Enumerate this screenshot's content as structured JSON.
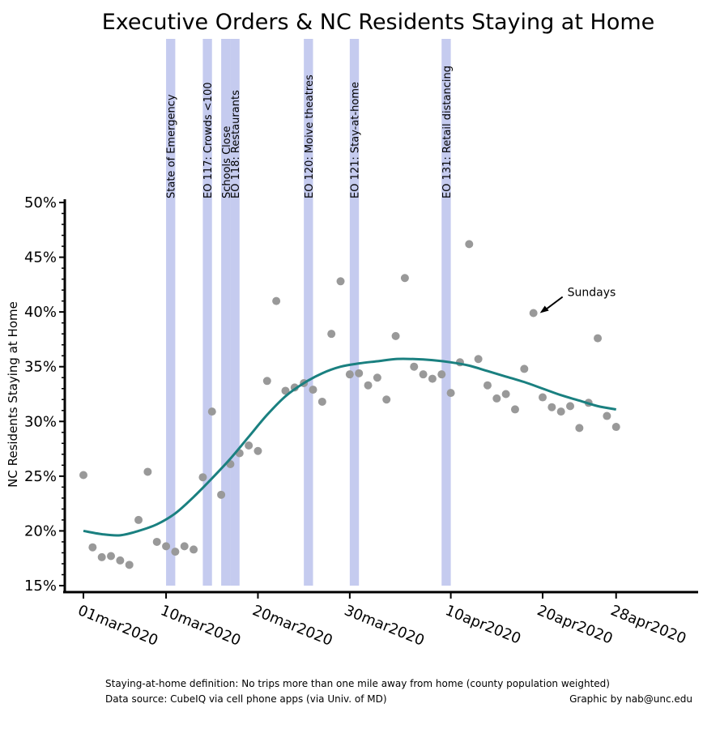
{
  "chart_data": {
    "type": "scatter",
    "title": "Executive Orders  & NC Residents Staying at Home",
    "ylabel": "NC Residents Staying at Home",
    "xlabel": "",
    "ylim": [
      15,
      50
    ],
    "y_unit": "%",
    "xlim": [
      "2020-02-29",
      "2020-05-05"
    ],
    "y_ticks": [
      15,
      20,
      25,
      30,
      35,
      40,
      45,
      50
    ],
    "y_tick_labels": [
      "15%",
      "20%",
      "25%",
      "30%",
      "35%",
      "40%",
      "45%",
      "50%"
    ],
    "x_ticks": [
      "2020-03-01",
      "2020-03-10",
      "2020-03-20",
      "2020-03-30",
      "2020-04-10",
      "2020-04-20",
      "2020-04-28"
    ],
    "x_tick_labels": [
      "01mar2020",
      "10mar2020",
      "20mar2020",
      "30mar2020",
      "10apr2020",
      "20apr2020",
      "28apr2020"
    ],
    "grid": false,
    "series": [
      {
        "type": "scatter",
        "color": "#999999",
        "points": [
          {
            "x": "2020-03-01",
            "y": 25.1
          },
          {
            "x": "2020-03-02",
            "y": 18.5
          },
          {
            "x": "2020-03-03",
            "y": 17.6
          },
          {
            "x": "2020-03-04",
            "y": 17.7
          },
          {
            "x": "2020-03-05",
            "y": 17.3
          },
          {
            "x": "2020-03-06",
            "y": 16.9
          },
          {
            "x": "2020-03-07",
            "y": 21.0
          },
          {
            "x": "2020-03-08",
            "y": 25.4
          },
          {
            "x": "2020-03-09",
            "y": 19.0
          },
          {
            "x": "2020-03-10",
            "y": 18.6
          },
          {
            "x": "2020-03-11",
            "y": 18.1
          },
          {
            "x": "2020-03-12",
            "y": 18.6
          },
          {
            "x": "2020-03-13",
            "y": 18.3
          },
          {
            "x": "2020-03-14",
            "y": 24.9
          },
          {
            "x": "2020-03-15",
            "y": 30.9
          },
          {
            "x": "2020-03-16",
            "y": 23.3
          },
          {
            "x": "2020-03-17",
            "y": 26.1
          },
          {
            "x": "2020-03-18",
            "y": 27.1
          },
          {
            "x": "2020-03-19",
            "y": 27.8
          },
          {
            "x": "2020-03-20",
            "y": 27.3
          },
          {
            "x": "2020-03-21",
            "y": 33.7
          },
          {
            "x": "2020-03-22",
            "y": 41.0
          },
          {
            "x": "2020-03-23",
            "y": 32.8
          },
          {
            "x": "2020-03-24",
            "y": 33.1
          },
          {
            "x": "2020-03-25",
            "y": 33.5
          },
          {
            "x": "2020-03-26",
            "y": 32.9
          },
          {
            "x": "2020-03-27",
            "y": 31.8
          },
          {
            "x": "2020-03-28",
            "y": 38.0
          },
          {
            "x": "2020-03-29",
            "y": 42.8
          },
          {
            "x": "2020-03-30",
            "y": 34.3
          },
          {
            "x": "2020-03-31",
            "y": 34.4
          },
          {
            "x": "2020-04-01",
            "y": 33.3
          },
          {
            "x": "2020-04-02",
            "y": 34.0
          },
          {
            "x": "2020-04-03",
            "y": 32.0
          },
          {
            "x": "2020-04-04",
            "y": 37.8
          },
          {
            "x": "2020-04-05",
            "y": 43.1
          },
          {
            "x": "2020-04-06",
            "y": 35.0
          },
          {
            "x": "2020-04-07",
            "y": 34.3
          },
          {
            "x": "2020-04-08",
            "y": 33.9
          },
          {
            "x": "2020-04-09",
            "y": 34.3
          },
          {
            "x": "2020-04-10",
            "y": 32.6
          },
          {
            "x": "2020-04-11",
            "y": 35.4
          },
          {
            "x": "2020-04-12",
            "y": 46.2
          },
          {
            "x": "2020-04-13",
            "y": 35.7
          },
          {
            "x": "2020-04-14",
            "y": 33.3
          },
          {
            "x": "2020-04-15",
            "y": 32.1
          },
          {
            "x": "2020-04-16",
            "y": 32.5
          },
          {
            "x": "2020-04-17",
            "y": 31.1
          },
          {
            "x": "2020-04-18",
            "y": 34.8
          },
          {
            "x": "2020-04-19",
            "y": 39.9
          },
          {
            "x": "2020-04-20",
            "y": 32.2
          },
          {
            "x": "2020-04-21",
            "y": 31.3
          },
          {
            "x": "2020-04-22",
            "y": 30.9
          },
          {
            "x": "2020-04-23",
            "y": 31.4
          },
          {
            "x": "2020-04-24",
            "y": 29.4
          },
          {
            "x": "2020-04-25",
            "y": 31.7
          },
          {
            "x": "2020-04-26",
            "y": 37.6
          },
          {
            "x": "2020-04-27",
            "y": 30.5
          },
          {
            "x": "2020-04-28",
            "y": 29.5
          }
        ]
      },
      {
        "type": "line",
        "smooth": true,
        "color": "#1a8080",
        "points": [
          {
            "x": "2020-03-01",
            "y": 20.0
          },
          {
            "x": "2020-03-03",
            "y": 19.7
          },
          {
            "x": "2020-03-05",
            "y": 19.6
          },
          {
            "x": "2020-03-07",
            "y": 20.0
          },
          {
            "x": "2020-03-09",
            "y": 20.6
          },
          {
            "x": "2020-03-11",
            "y": 21.6
          },
          {
            "x": "2020-03-13",
            "y": 23.1
          },
          {
            "x": "2020-03-15",
            "y": 24.8
          },
          {
            "x": "2020-03-17",
            "y": 26.6
          },
          {
            "x": "2020-03-19",
            "y": 28.6
          },
          {
            "x": "2020-03-21",
            "y": 30.6
          },
          {
            "x": "2020-03-23",
            "y": 32.3
          },
          {
            "x": "2020-03-25",
            "y": 33.5
          },
          {
            "x": "2020-03-27",
            "y": 34.4
          },
          {
            "x": "2020-03-29",
            "y": 35.0
          },
          {
            "x": "2020-03-31",
            "y": 35.3
          },
          {
            "x": "2020-04-02",
            "y": 35.5
          },
          {
            "x": "2020-04-04",
            "y": 35.7
          },
          {
            "x": "2020-04-06",
            "y": 35.7
          },
          {
            "x": "2020-04-08",
            "y": 35.6
          },
          {
            "x": "2020-04-10",
            "y": 35.4
          },
          {
            "x": "2020-04-12",
            "y": 35.1
          },
          {
            "x": "2020-04-14",
            "y": 34.6
          },
          {
            "x": "2020-04-16",
            "y": 34.1
          },
          {
            "x": "2020-04-18",
            "y": 33.6
          },
          {
            "x": "2020-04-20",
            "y": 33.0
          },
          {
            "x": "2020-04-22",
            "y": 32.4
          },
          {
            "x": "2020-04-24",
            "y": 31.9
          },
          {
            "x": "2020-04-26",
            "y": 31.4
          },
          {
            "x": "2020-04-28",
            "y": 31.1
          }
        ]
      }
    ],
    "event_bands": [
      {
        "start": "2020-03-10",
        "end": "2020-03-11",
        "label": "State of Emergency"
      },
      {
        "start": "2020-03-14",
        "end": "2020-03-15",
        "label": "EO 117: Crowds <100"
      },
      {
        "start": "2020-03-16",
        "end": "2020-03-17",
        "label": "Schools Close"
      },
      {
        "start": "2020-03-17",
        "end": "2020-03-18",
        "label": "EO 118: Restaurants"
      },
      {
        "start": "2020-03-25",
        "end": "2020-03-26",
        "label": "EO 120: Moive theatres"
      },
      {
        "start": "2020-03-30",
        "end": "2020-03-31",
        "label": "EO 121: Stay-at-home"
      },
      {
        "start": "2020-04-09",
        "end": "2020-04-10",
        "label": "EO 131: Retail distancing"
      }
    ],
    "band_color": "#c5cbef",
    "annotations": [
      {
        "text": "Sundays",
        "x": "2020-04-19",
        "y": 39.9
      }
    ],
    "footnotes": {
      "definition": "Staying-at-home definition: No trips more than one mile away from home (county population weighted)",
      "source": "Data source: CubeIQ via cell phone apps (via Univ. of MD)",
      "credit": "Graphic by nab@unc.edu"
    }
  }
}
